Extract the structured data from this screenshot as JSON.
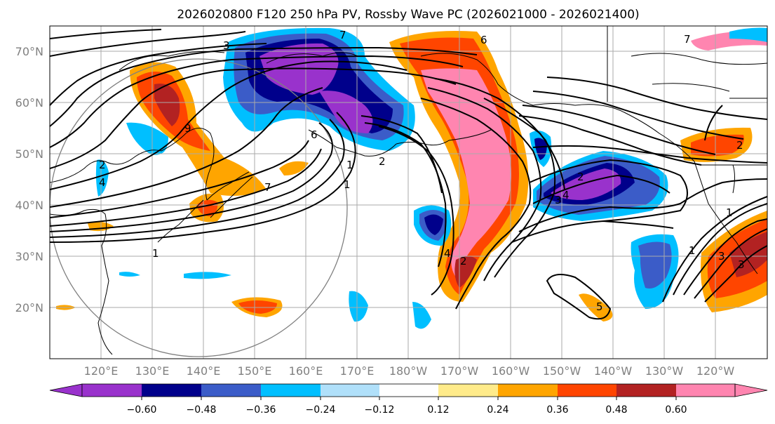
{
  "title": "2026020800 F120 250 hPa PV, Rossby Wave PC (2026021000 - 2026021400)",
  "lat_labels": [
    "70°N",
    "60°N",
    "50°N",
    "40°N",
    "30°N",
    "20°N"
  ],
  "lon_labels": [
    "120°E",
    "130°E",
    "140°E",
    "150°E",
    "160°E",
    "170°E",
    "180°W",
    "170°W",
    "160°W",
    "150°W",
    "140°W",
    "130°W",
    "120°W"
  ],
  "colorbar": {
    "colors": [
      "#9932cc",
      "#00008b",
      "#3b5cc8",
      "#00bfff",
      "#b0e0fa",
      "#ffffff",
      "#ffeb8a",
      "#ffa500",
      "#ff4500",
      "#b22222",
      "#ff85b0"
    ],
    "labels": [
      "−0.60",
      "−0.48",
      "−0.36",
      "−0.24",
      "−0.12",
      "0.12",
      "0.24",
      "0.36",
      "0.48",
      "0.60"
    ],
    "values": [
      -0.6,
      -0.48,
      -0.36,
      -0.24,
      -0.12,
      0.12,
      0.24,
      0.36,
      0.48,
      0.6
    ]
  },
  "contour_labels": [
    "3",
    "7",
    "2",
    "4",
    "9",
    "6",
    "1",
    "1",
    "7",
    "2",
    "1",
    "7",
    "6",
    "4",
    "3",
    "2",
    "3",
    "2",
    "1",
    "5",
    "4",
    "3",
    "2",
    "1"
  ]
}
